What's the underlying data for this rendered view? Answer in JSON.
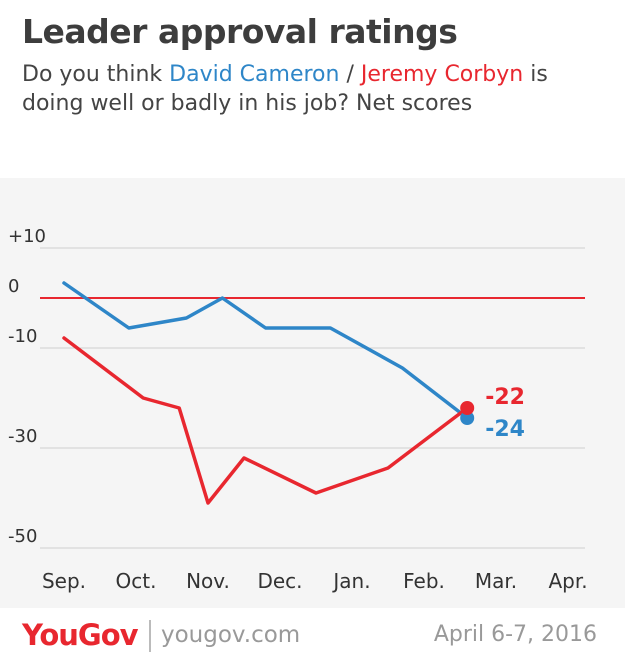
{
  "header": {
    "title": "Leader approval ratings",
    "subtitle_pre": "Do you think ",
    "name_a": "David Cameron",
    "separator": " / ",
    "name_b": "Jeremy Corbyn",
    "subtitle_post": " is doing well or badly in his job? Net scores"
  },
  "footer": {
    "logo": "YouGov",
    "site": "yougov.com",
    "date": "April 6-7, 2016"
  },
  "colors": {
    "cameron": "#2e86c8",
    "corbyn": "#e8272f",
    "background": "#f5f5f5",
    "zero_line": "#e8272f"
  },
  "chart_data": {
    "type": "line",
    "title": "Leader approval ratings",
    "xlabel": "",
    "ylabel": "",
    "x_tick_labels": [
      "Sep.",
      "Oct.",
      "Nov.",
      "Dec.",
      "Jan.",
      "Feb.",
      "Mar.",
      "Apr."
    ],
    "y_tick_labels": [
      "+10",
      "0",
      "-10",
      "-30",
      "-50"
    ],
    "y_tick_values": [
      10,
      0,
      -10,
      -30,
      -50
    ],
    "ylim": [
      -50,
      10
    ],
    "grid": "horizontal",
    "series": [
      {
        "name": "David Cameron",
        "color": "#2e86c8",
        "x": [
          0,
          0.9,
          1.7,
          2.2,
          2.8,
          3.7,
          4.7,
          5.6
        ],
        "y": [
          3,
          -6,
          -4,
          0,
          -6,
          -6,
          -14,
          -24
        ],
        "end_label": "-24"
      },
      {
        "name": "Jeremy Corbyn",
        "color": "#e8272f",
        "x": [
          0,
          1.1,
          1.6,
          2.0,
          2.5,
          3.5,
          4.5,
          5.6
        ],
        "y": [
          -8,
          -20,
          -22,
          -41,
          -32,
          -39,
          -34,
          -22
        ],
        "end_label": "-22"
      }
    ]
  }
}
